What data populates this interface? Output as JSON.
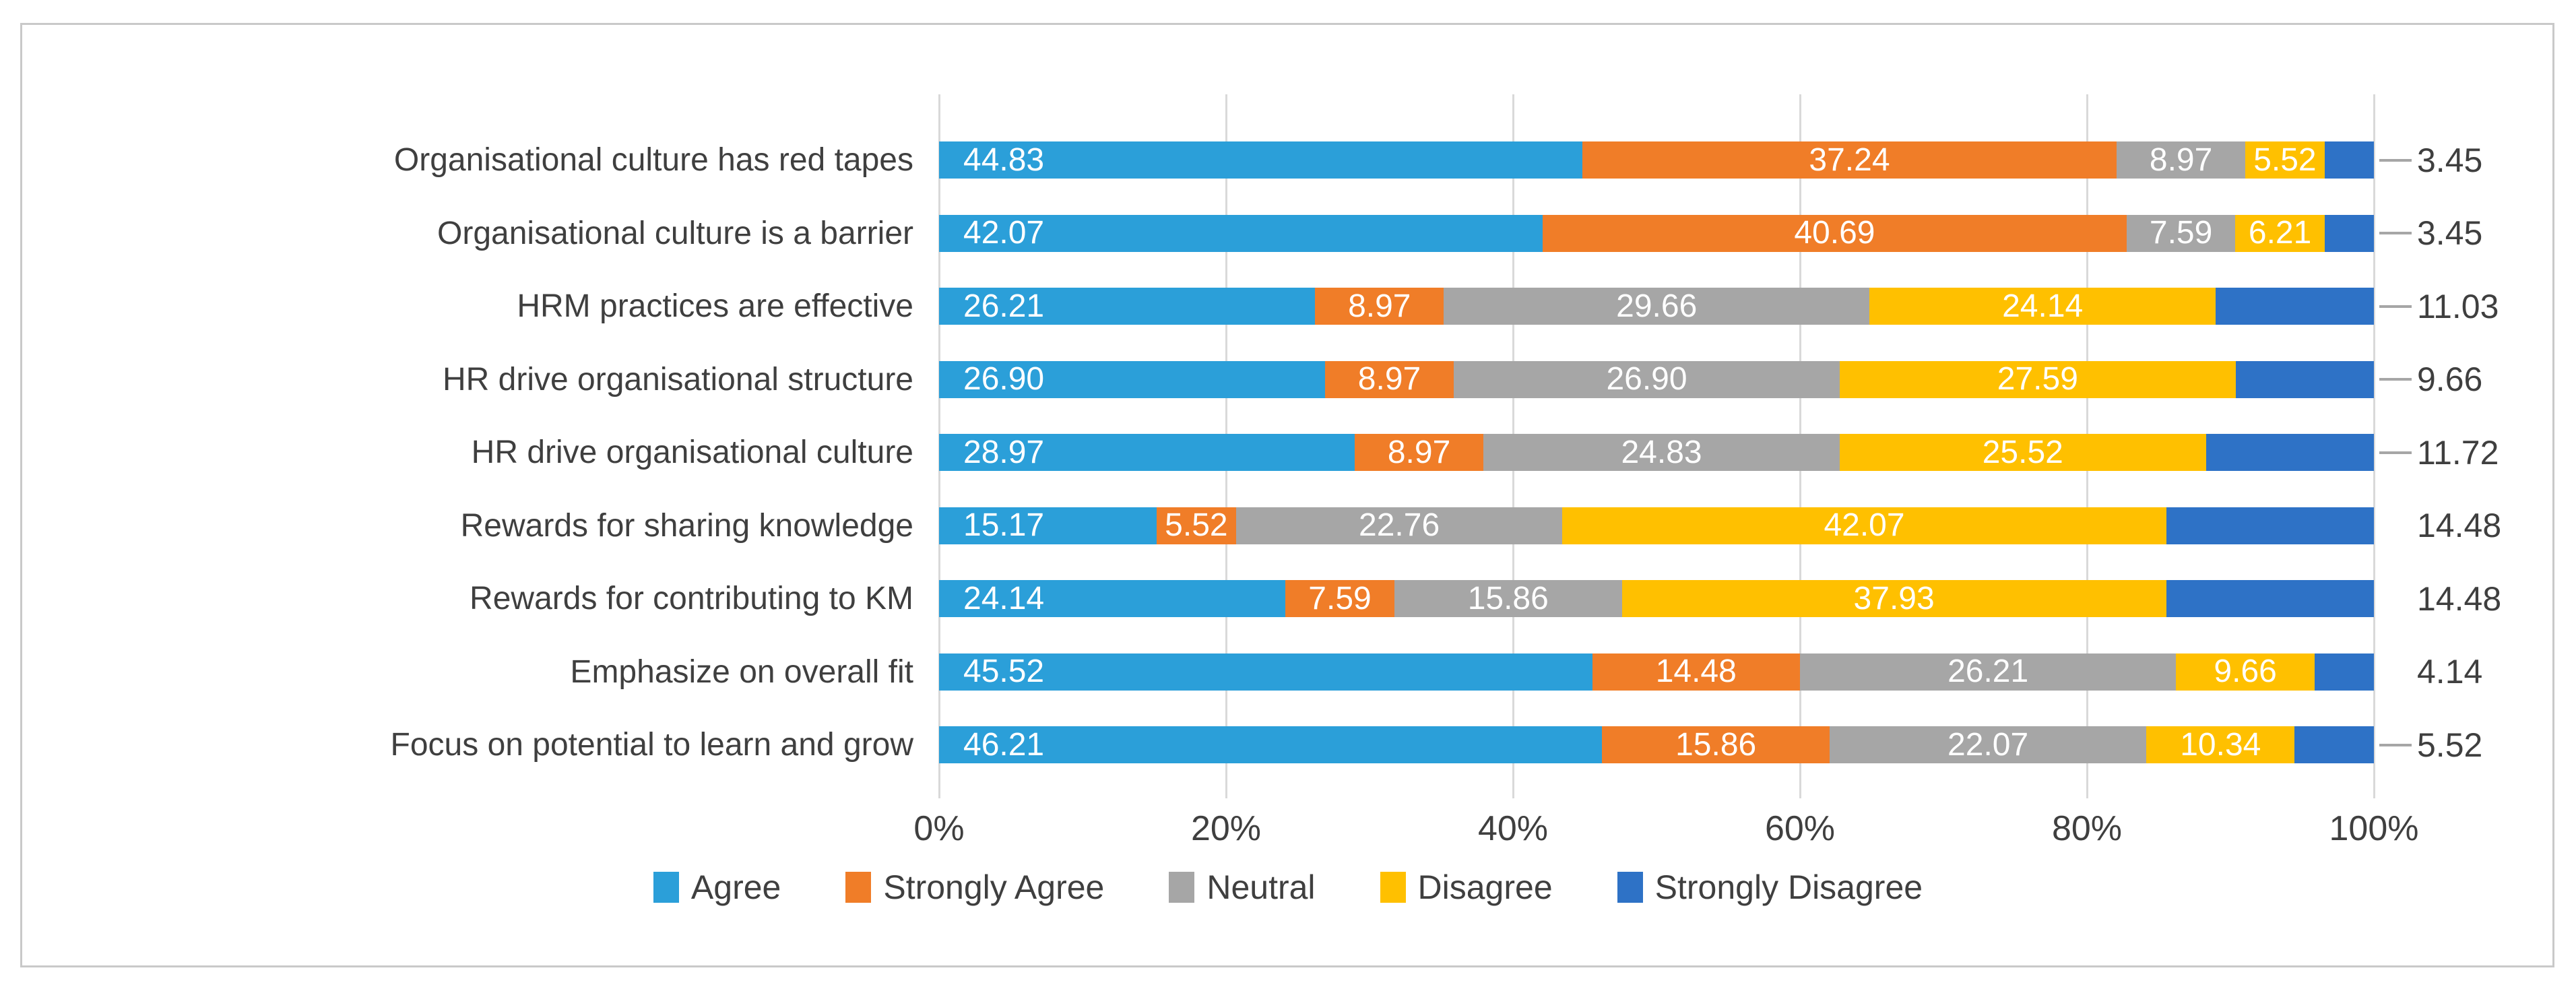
{
  "chart_data": {
    "type": "bar",
    "subtype": "stacked-horizontal-100percent",
    "title": "",
    "categories": [
      "Organisational culture has red tapes",
      "Organisational culture is a barrier",
      "HRM practices are effective",
      "HR drive organisational structure",
      "HR drive organisational culture",
      "Rewards for sharing knowledge",
      "Rewards for contributing to KM",
      "Emphasize on overall fit",
      "Focus on potential to learn and grow"
    ],
    "series": [
      {
        "name": "Agree",
        "color": "#2B9FD9",
        "values": [
          44.83,
          42.07,
          26.21,
          26.9,
          28.97,
          15.17,
          24.14,
          45.52,
          46.21
        ]
      },
      {
        "name": "Strongly Agree",
        "color": "#F07D28",
        "values": [
          37.24,
          40.69,
          8.97,
          8.97,
          8.97,
          5.52,
          7.59,
          14.48,
          15.86
        ]
      },
      {
        "name": "Neutral",
        "color": "#A6A6A6",
        "values": [
          8.97,
          7.59,
          29.66,
          26.9,
          24.83,
          22.76,
          15.86,
          26.21,
          22.07
        ]
      },
      {
        "name": "Disagree",
        "color": "#FFC000",
        "values": [
          5.52,
          6.21,
          24.14,
          27.59,
          25.52,
          42.07,
          37.93,
          9.66,
          10.34
        ]
      },
      {
        "name": "Strongly Disagree",
        "color": "#2E72C6",
        "values": [
          3.45,
          3.45,
          11.03,
          9.66,
          11.72,
          14.48,
          14.48,
          4.14,
          5.52
        ]
      }
    ],
    "value_label_decimals": 2,
    "outside_label_series_index": 4,
    "leader_line_rows": [
      0,
      1,
      2,
      3,
      4,
      8
    ],
    "x_ticks": [
      "0%",
      "20%",
      "40%",
      "60%",
      "80%",
      "100%"
    ],
    "xlim": [
      0,
      100
    ],
    "grid": "vertical",
    "legend_position": "bottom",
    "legend_items": [
      "Agree",
      "Strongly Agree",
      "Neutral",
      "Disagree",
      "Strongly Disagree"
    ]
  },
  "style": {
    "gridline_color": "#D9D9D9",
    "text_color": "#3F3F3F",
    "inside_label_color": "#FFFFFF",
    "panel_border_color": "#C9C9C9",
    "leader_line_color": "#A6A6A6",
    "background": "#FFFFFF"
  }
}
